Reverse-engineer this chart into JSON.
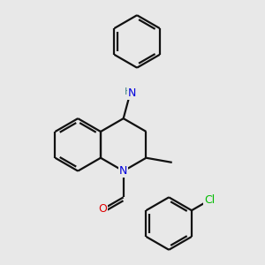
{
  "bg_color": "#e8e8e8",
  "atom_colors": {
    "N": "#0000dd",
    "O": "#dd0000",
    "Cl": "#00bb00",
    "H": "#448888"
  },
  "bond_color": "#111111",
  "bond_width": 1.6,
  "figsize": [
    3.0,
    3.0
  ],
  "dpi": 100,
  "bl": 0.38
}
